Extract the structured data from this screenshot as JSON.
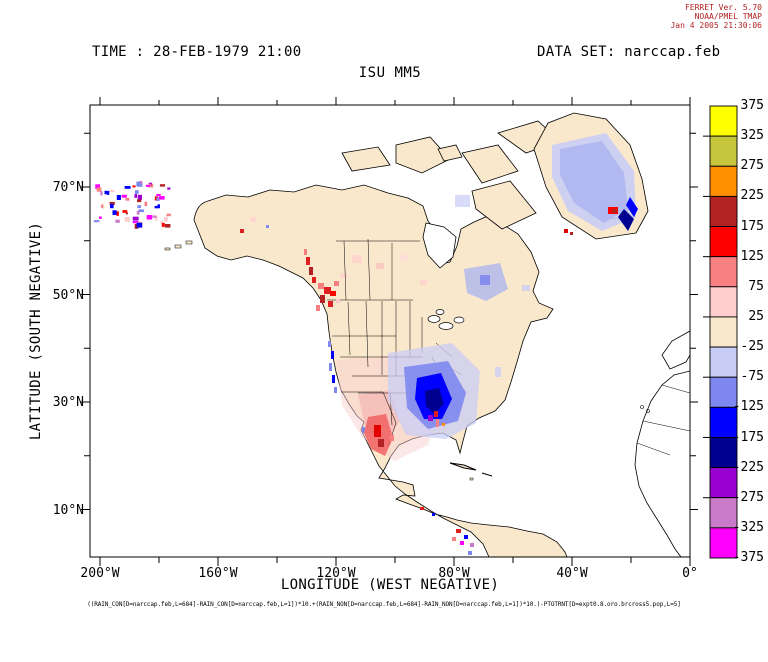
{
  "stamp": {
    "line1": "FERRET Ver. 5.70",
    "line2": "NOAA/PMEL TMAP",
    "line3": "Jan  4 2005 21:30:06",
    "color": "#b22222"
  },
  "header": {
    "time_label": "TIME : 28-FEB-1979 21:00",
    "dataset_label": "DATA SET: narccap.feb",
    "title": "ISU MM5"
  },
  "axes": {
    "x": {
      "label": "LONGITUDE (WEST NEGATIVE)",
      "ticks": [
        "200°W",
        "160°W",
        "120°W",
        "80°W",
        "40°W",
        "0°"
      ]
    },
    "y": {
      "label": "LATITUDE (SOUTH NEGATIVE)",
      "ticks": [
        "70°N",
        "50°N",
        "30°N",
        "10°N"
      ]
    }
  },
  "footer": {
    "expression": "((RAIN_CON[D=narccap.feb,L=684]-RAIN_CON[D=narccap.feb,L=1])*10.+(RAIN_NON[D=narccap.feb,L=684]-RAIN_NON[D=narccap.feb,L=1])*10.)-PTOTRNT[D=expt0.8.oro.brcross5.pop,L=5]"
  },
  "chart_data": {
    "type": "heatmap",
    "title": "ISU MM5",
    "time": "28-FEB-1979 21:00",
    "dataset": "narccap.feb",
    "xlabel": "LONGITUDE (WEST NEGATIVE)",
    "ylabel": "LATITUDE (SOUTH NEGATIVE)",
    "xlim": [
      -203,
      0
    ],
    "ylim": [
      1,
      85
    ],
    "x_major_ticks_deg": [
      -200,
      -160,
      -120,
      -80,
      -40,
      0
    ],
    "y_major_ticks_deg": [
      70,
      50,
      30,
      10
    ],
    "grid": false,
    "legend_position": "right-colorbar",
    "colorbar": {
      "levels": [
        375,
        325,
        275,
        225,
        175,
        125,
        75,
        25,
        -25,
        -75,
        -125,
        -175,
        -225,
        -275,
        -325,
        -375
      ],
      "labels": [
        "375",
        "325",
        "275",
        "225",
        "175",
        "125",
        "75",
        "25",
        "-25",
        "-75",
        "-125",
        "-175",
        "-225",
        "-275",
        "-325",
        "-375"
      ],
      "colors": [
        "#ffff00",
        "#c6c63c",
        "#ff8e00",
        "#b22222",
        "#ff0000",
        "#f88080",
        "#ffcfcf",
        "#fae8cc",
        "#c9cdf5",
        "#7e88f0",
        "#0000fe",
        "#000090",
        "#9a00d0",
        "#c97bc9",
        "#ff00ff"
      ]
    },
    "land_background_value_range": [
      -25,
      25
    ],
    "anomaly_regions": [
      {
        "area": "Southeastern US (Mississippi/Alabama/Georgia)",
        "value": "strong negative, -75 to -275"
      },
      {
        "area": "Pacific Northwest / British Columbia",
        "value": "positive, +75 to +225"
      },
      {
        "area": "Northern Mexico (Sierra Madre)",
        "value": "positive, +75 to +225"
      },
      {
        "area": "Central Greenland",
        "value": "negative, -25 to -125"
      },
      {
        "area": "Quebec / eastern Canada",
        "value": "negative, -25 to -100"
      },
      {
        "area": "Iceland",
        "value": "positive, +125 to +225"
      },
      {
        "area": "Central plains US",
        "value": "weak positive, 0 to +75"
      },
      {
        "area": "Bering Sea (noisy cluster)",
        "value": "mixed extremes, -375 to +375"
      }
    ]
  }
}
